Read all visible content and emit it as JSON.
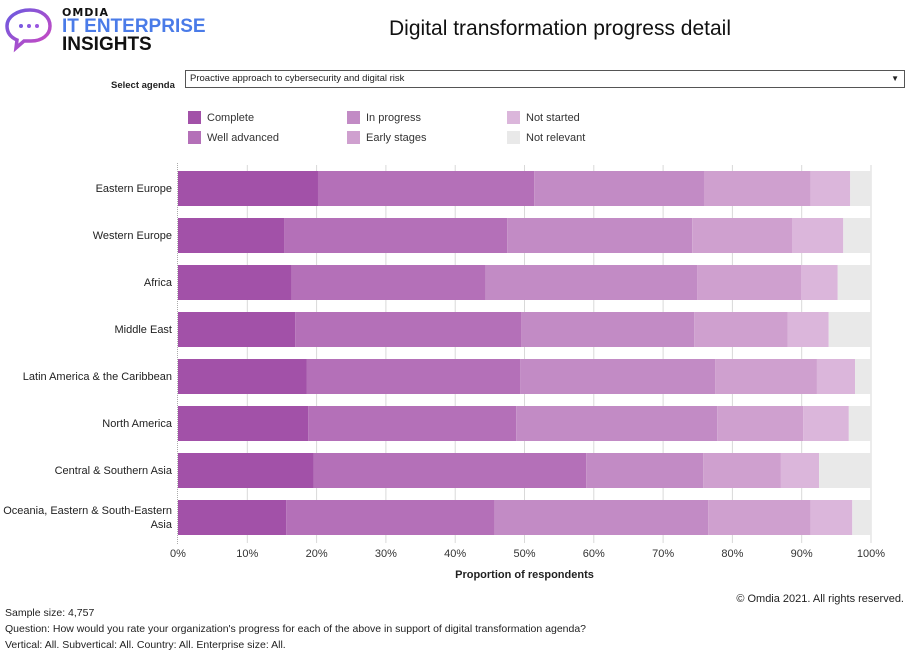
{
  "logo": {
    "brand": "OMDIA",
    "line1": "IT ENTERPRISE",
    "line2": "INSIGHTS"
  },
  "header": {
    "title": "Digital transformation progress detail"
  },
  "controls": {
    "select_label": "Select agenda",
    "select_value": "Proactive approach to cybersecurity and digital risk",
    "select_arrow": "▼"
  },
  "colors": {
    "complete": "#a251a8",
    "well_advanced": "#b470b8",
    "in_progress": "#c28bc5",
    "early_stages": "#cfa0cf",
    "not_started": "#dbb6db",
    "not_relevant": "#e9e9e9"
  },
  "chart_data": {
    "type": "bar",
    "orientation": "horizontal",
    "stacked": true,
    "title": "Digital transformation progress detail",
    "xlabel": "Proportion of respondents",
    "ylabel": "",
    "xlim": [
      0,
      100
    ],
    "x_ticks": [
      "0%",
      "10%",
      "20%",
      "30%",
      "40%",
      "50%",
      "60%",
      "70%",
      "80%",
      "90%",
      "100%"
    ],
    "grid": "vertical",
    "legend_position": "top",
    "categories": [
      "Eastern Europe",
      "Western Europe",
      "Africa",
      "Middle East",
      "Latin America & the Caribbean",
      "North America",
      "Central & Southern Asia",
      "Oceania, Eastern & South-Eastern Asia"
    ],
    "series": [
      {
        "name": "Complete",
        "color": "#a251a8",
        "values": [
          20.2,
          15.3,
          16.4,
          16.9,
          18.6,
          18.8,
          19.6,
          15.6
        ]
      },
      {
        "name": "Well advanced",
        "color": "#b470b8",
        "values": [
          31.2,
          32.2,
          28.0,
          32.6,
          30.8,
          30.0,
          39.3,
          30.1
        ]
      },
      {
        "name": "In progress",
        "color": "#c28bc5",
        "values": [
          24.5,
          26.7,
          30.5,
          25.0,
          28.1,
          29.0,
          16.9,
          30.8
        ]
      },
      {
        "name": "Early stages",
        "color": "#cfa0cf",
        "values": [
          15.4,
          14.4,
          15.0,
          13.5,
          14.7,
          12.4,
          11.2,
          14.8
        ]
      },
      {
        "name": "Not started",
        "color": "#dbb6db",
        "values": [
          5.7,
          7.4,
          5.3,
          5.9,
          5.5,
          6.6,
          5.5,
          6.0
        ]
      },
      {
        "name": "Not relevant",
        "color": "#e9e9e9",
        "values": [
          3.0,
          4.0,
          4.8,
          6.1,
          2.3,
          3.2,
          7.5,
          2.7
        ]
      }
    ]
  },
  "legend": [
    {
      "label": "Complete",
      "color": "#a251a8"
    },
    {
      "label": "Well advanced",
      "color": "#b470b8"
    },
    {
      "label": "In progress",
      "color": "#c28bc5"
    },
    {
      "label": "Early stages",
      "color": "#cfa0cf"
    },
    {
      "label": "Not started",
      "color": "#dbb6db"
    },
    {
      "label": "Not relevant",
      "color": "#e9e9e9"
    }
  ],
  "footer": {
    "copyright": "© Omdia 2021. All rights reserved.",
    "sample_size": "Sample size: 4,757",
    "question": "Question: How would you rate your organization's progress for each of the above in support of digital transformation agenda?",
    "filters": "Vertical: All. Subvertical: All. Country: All. Enterprise size: All."
  }
}
